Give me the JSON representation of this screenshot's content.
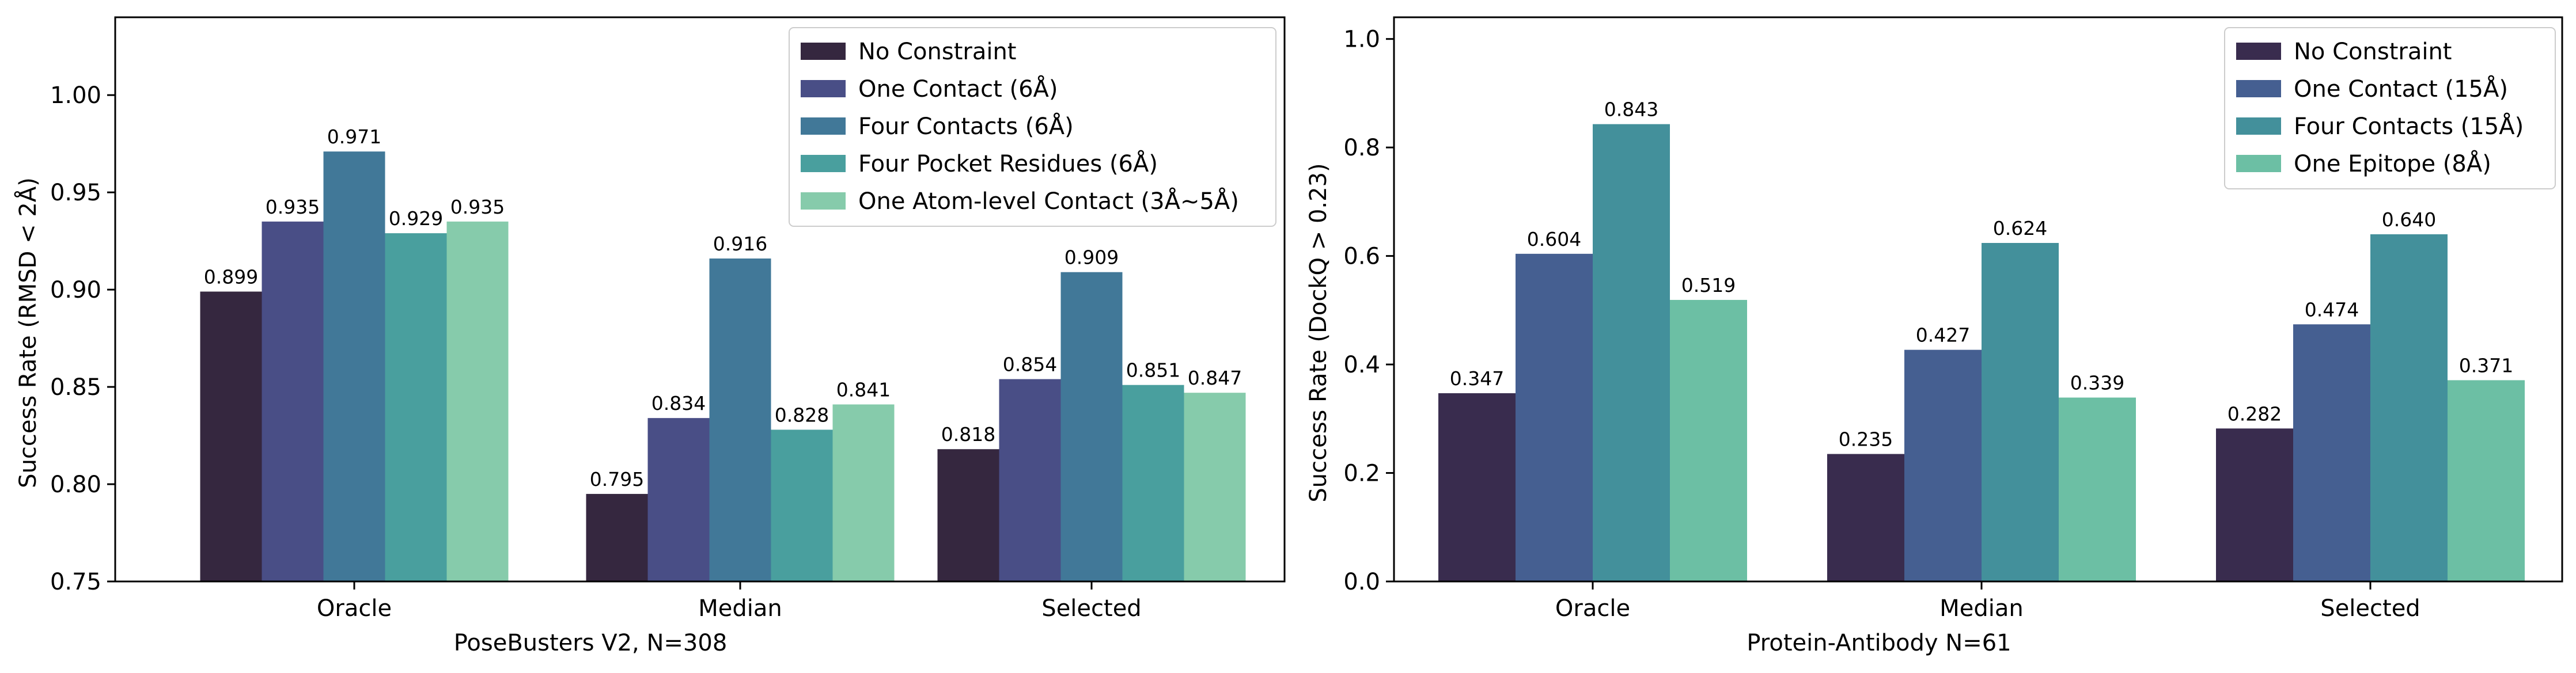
{
  "chart_data": [
    {
      "type": "bar",
      "categories": [
        "Oracle",
        "Median",
        "Selected"
      ],
      "xlabel": "PoseBusters V2, N=308",
      "ylabel": "Success Rate (RMSD < 2Å)",
      "ylim": [
        0.75,
        1.04
      ],
      "yticks": [
        "0.75",
        "0.80",
        "0.85",
        "0.90",
        "0.95",
        "1.00"
      ],
      "legend_position": "top-right",
      "series": [
        {
          "name": "No Constraint",
          "color": "#35273f",
          "values": [
            0.899,
            0.795,
            0.818
          ],
          "labels": [
            "0.899",
            "0.795",
            "0.818"
          ]
        },
        {
          "name": "One Contact (6Å)",
          "color": "#494e86",
          "values": [
            0.935,
            0.834,
            0.854
          ],
          "labels": [
            "0.935",
            "0.834",
            "0.854"
          ]
        },
        {
          "name": "Four Contacts (6Å)",
          "color": "#417898",
          "values": [
            0.971,
            0.916,
            0.909
          ],
          "labels": [
            "0.971",
            "0.916",
            "0.909"
          ]
        },
        {
          "name": "Four Pocket Residues (6Å)",
          "color": "#499f9e",
          "values": [
            0.929,
            0.828,
            0.851
          ],
          "labels": [
            "0.929",
            "0.828",
            "0.851"
          ]
        },
        {
          "name": "One Atom-level Contact (3Å~5Å)",
          "color": "#86cbab",
          "values": [
            0.935,
            0.841,
            0.847
          ],
          "labels": [
            "0.935",
            "0.841",
            "0.847"
          ]
        }
      ]
    },
    {
      "type": "bar",
      "categories": [
        "Oracle",
        "Median",
        "Selected"
      ],
      "xlabel": "Protein-Antibody N=61",
      "ylabel": "Success Rate (DockQ > 0.23)",
      "ylim": [
        0.0,
        1.04
      ],
      "yticks": [
        "0.0",
        "0.2",
        "0.4",
        "0.6",
        "0.8",
        "1.0"
      ],
      "legend_position": "top-right",
      "series": [
        {
          "name": "No Constraint",
          "color": "#392c4e",
          "values": [
            0.347,
            0.235,
            0.282
          ],
          "labels": [
            "0.347",
            "0.235",
            "0.282"
          ]
        },
        {
          "name": "One Contact (15Å)",
          "color": "#455f91",
          "values": [
            0.604,
            0.427,
            0.474
          ],
          "labels": [
            "0.604",
            "0.427",
            "0.474"
          ]
        },
        {
          "name": "Four Contacts (15Å)",
          "color": "#43909b",
          "values": [
            0.843,
            0.624,
            0.64
          ],
          "labels": [
            "0.843",
            "0.624",
            "0.640"
          ]
        },
        {
          "name": "One Epitope (8Å)",
          "color": "#6cbfa4",
          "values": [
            0.519,
            0.339,
            0.371
          ],
          "labels": [
            "0.519",
            "0.339",
            "0.371"
          ]
        }
      ]
    }
  ]
}
